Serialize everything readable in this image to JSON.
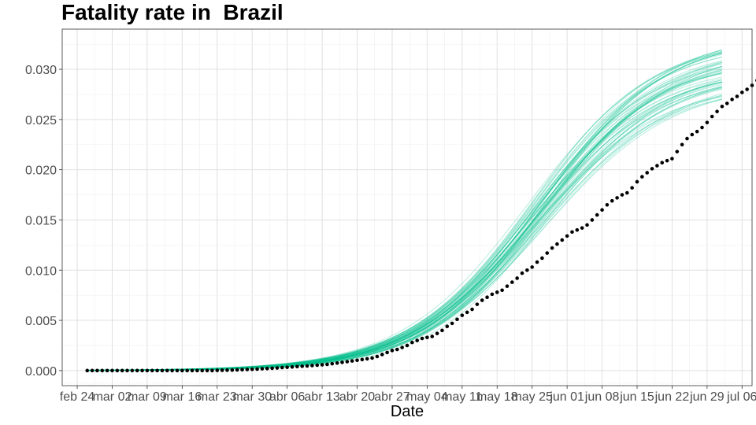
{
  "chart_data": {
    "type": "line",
    "title": "Fatality rate in  Brazil",
    "xlabel": "Date",
    "ylabel": "",
    "x_ticks": [
      "feb 24",
      "mar 02",
      "mar 09",
      "mar 16",
      "mar 23",
      "mar 30",
      "abr 06",
      "abr 13",
      "abr 20",
      "abr 27",
      "may 04",
      "may 11",
      "may 18",
      "may 25",
      "jun 01",
      "jun 08",
      "jun 15",
      "jun 22",
      "jun 29",
      "jul 06"
    ],
    "y_ticks": [
      "0.000",
      "0.005",
      "0.010",
      "0.015",
      "0.020",
      "0.025",
      "0.030"
    ],
    "xlim": [
      "2020-02-21",
      "2020-07-08"
    ],
    "ylim": [
      -0.0015,
      0.034
    ],
    "grid": true,
    "series": [
      {
        "kind": "points",
        "color": "#000000",
        "x_start": "2020-02-26",
        "x_end": "2020-07-02",
        "values": [
          0.0,
          0.0,
          0.0,
          0.0,
          0.0,
          0.0,
          0.0,
          0.0,
          0.0,
          0.0,
          0.0,
          0.0,
          0.0,
          0.0,
          0.0,
          0.0,
          0.0,
          0.0,
          0.0,
          0.0,
          0.0,
          0.0,
          0.0,
          0.0,
          0.0,
          0.0,
          2e-05,
          3e-05,
          4e-05,
          5e-05,
          7e-05,
          9e-05,
          0.00011,
          0.00013,
          0.00015,
          0.00018,
          0.0002,
          0.00023,
          0.00026,
          0.0003,
          0.00033,
          0.00036,
          0.0004,
          0.00043,
          0.00046,
          0.0005,
          0.00054,
          0.00058,
          0.00062,
          0.00068,
          0.00075,
          0.00082,
          0.00089,
          0.00096,
          0.00103,
          0.0011,
          0.00117,
          0.00125,
          0.0014,
          0.0016,
          0.0018,
          0.002,
          0.0021,
          0.0023,
          0.0025,
          0.0028,
          0.003,
          0.0032,
          0.0033,
          0.0034,
          0.0037,
          0.004,
          0.0044,
          0.0047,
          0.0051,
          0.0055,
          0.0058,
          0.0061,
          0.0066,
          0.007,
          0.0073,
          0.0076,
          0.0078,
          0.008,
          0.0084,
          0.0088,
          0.0092,
          0.0097,
          0.01,
          0.0103,
          0.0108,
          0.0112,
          0.0117,
          0.0122,
          0.0126,
          0.013,
          0.0134,
          0.0138,
          0.014,
          0.0142,
          0.0145,
          0.015,
          0.0155,
          0.016,
          0.0165,
          0.0169,
          0.0172,
          0.0175,
          0.0177,
          0.0182,
          0.0188,
          0.0193,
          0.0197,
          0.0201,
          0.0204,
          0.0207,
          0.0209,
          0.0211,
          0.0218,
          0.0225,
          0.0231,
          0.0235,
          0.0238,
          0.0242,
          0.0247,
          0.0253,
          0.0258,
          0.0263,
          0.0266,
          0.027,
          0.0273,
          0.0277,
          0.028,
          0.0284,
          0.0289,
          0.0293,
          0.0296
        ]
      },
      {
        "kind": "simulated_curves",
        "color": "#00BF8C",
        "x_start": "2020-02-26",
        "x_end": "2020-07-02",
        "count": 60,
        "final_value_range": [
          0.027,
          0.0322
        ],
        "midpoint_date_range": [
          "2020-05-24",
          "2020-05-28"
        ]
      }
    ]
  }
}
